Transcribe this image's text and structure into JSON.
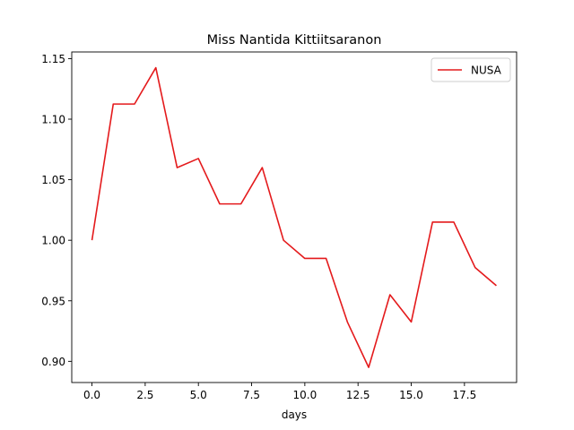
{
  "chart_data": {
    "type": "line",
    "title": "Miss Nantida Kittiitsaranon",
    "xlabel": "days",
    "ylabel": "",
    "xlim": [
      -0.95,
      19.95
    ],
    "ylim": [
      0.8825,
      1.1555
    ],
    "x_ticks": [
      0.0,
      2.5,
      5.0,
      7.5,
      10.0,
      12.5,
      15.0,
      17.5
    ],
    "x_tick_labels": [
      "0.0",
      "2.5",
      "5.0",
      "7.5",
      "10.0",
      "12.5",
      "15.0",
      "17.5"
    ],
    "y_ticks": [
      0.9,
      0.95,
      1.0,
      1.05,
      1.1,
      1.15
    ],
    "y_tick_labels": [
      "0.90",
      "0.95",
      "1.00",
      "1.05",
      "1.10",
      "1.15"
    ],
    "grid": false,
    "legend": "top-right",
    "x": [
      0,
      1,
      2,
      3,
      4,
      5,
      6,
      7,
      8,
      9,
      10,
      11,
      12,
      13,
      14,
      15,
      16,
      17,
      18,
      19
    ],
    "series": [
      {
        "name": "NUSA",
        "color": "#e41a1c",
        "values": [
          1.0,
          1.1125,
          1.1125,
          1.1425,
          1.06,
          1.0675,
          1.03,
          1.03,
          1.06,
          1.0,
          0.985,
          0.985,
          0.9325,
          0.895,
          0.955,
          0.9325,
          1.015,
          1.015,
          0.9775,
          0.9625
        ]
      }
    ]
  }
}
